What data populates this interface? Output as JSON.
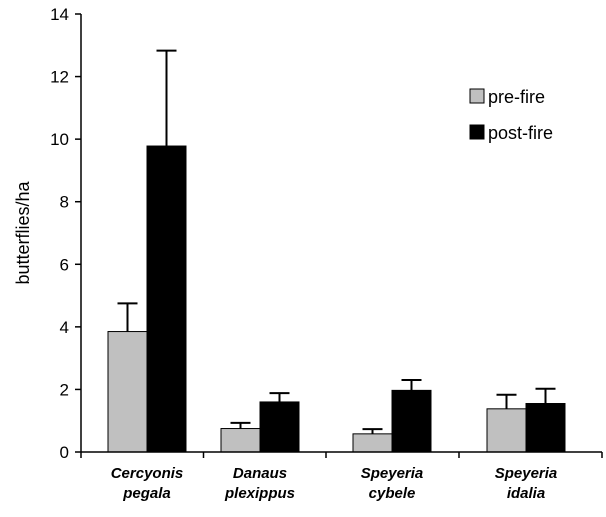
{
  "chart_data": {
    "type": "bar",
    "categories": [
      [
        "Cercyonis",
        "pegala"
      ],
      [
        "Danaus",
        "plexippus"
      ],
      [
        "Speyeria",
        "cybele"
      ],
      [
        "Speyeria",
        "idalia"
      ]
    ],
    "series": [
      {
        "name": "pre-fire",
        "color": "#c0c0c0",
        "values": [
          3.85,
          0.75,
          0.58,
          1.38
        ],
        "errors": [
          0.9,
          0.18,
          0.15,
          0.45
        ]
      },
      {
        "name": "post-fire",
        "color": "#000000",
        "values": [
          9.78,
          1.6,
          1.97,
          1.55
        ],
        "errors": [
          3.05,
          0.28,
          0.33,
          0.47
        ]
      }
    ],
    "xlabel": "",
    "ylabel": "butterflies/ha",
    "ylim": [
      0,
      14
    ],
    "yticks": [
      0,
      2,
      4,
      6,
      8,
      10,
      12,
      14
    ],
    "legend": "top-right",
    "grid": false
  }
}
